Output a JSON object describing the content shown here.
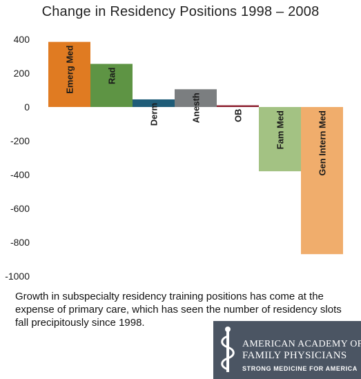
{
  "chart_data": {
    "type": "bar",
    "title": "Change in Residency Positions 1998 – 2008",
    "categories": [
      "Emerg Med",
      "Rad",
      "Derm",
      "Anesth",
      "OB",
      "Fam Med",
      "Gen Intern Med"
    ],
    "values": [
      385,
      255,
      45,
      105,
      10,
      -380,
      -870
    ],
    "colors": [
      "#e07b22",
      "#5e9444",
      "#1f5c78",
      "#7b7e80",
      "#8a1c2b",
      "#a3c283",
      "#f0ad6c"
    ],
    "ylim": [
      -1000,
      400
    ],
    "yticks": [
      400,
      200,
      0,
      -200,
      -400,
      -600,
      -800,
      -1000
    ],
    "grid": false,
    "legend": "none"
  },
  "caption": "Growth in subspecialty residency training positions has come at the expense of primary care, which has seen the number of residency slots fall precipitously since 1998.",
  "logo": {
    "line1": "AMERICAN ACADEMY OF",
    "line2": "FAMILY PHYSICIANS",
    "tagline": "STRONG MEDICINE FOR AMERICA",
    "background": "#4b5563"
  }
}
